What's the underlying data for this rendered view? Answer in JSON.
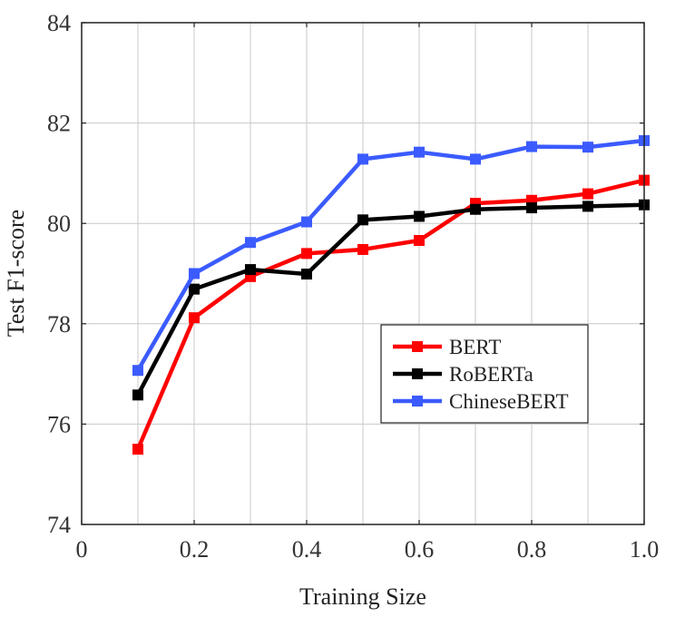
{
  "chart_data": {
    "type": "line",
    "title": "",
    "xlabel": "Training Size",
    "ylabel": "Test F1-score",
    "xlim": [
      0,
      1.0
    ],
    "ylim": [
      74,
      84
    ],
    "x_ticks": [
      "0",
      "0.2",
      "0.4",
      "0.6",
      "0.8",
      "1.0"
    ],
    "y_ticks": [
      "74",
      "76",
      "78",
      "80",
      "82",
      "84"
    ],
    "grid": true,
    "legend_position": "lower-right",
    "x": [
      0.1,
      0.2,
      0.3,
      0.4,
      0.5,
      0.6,
      0.7,
      0.8,
      0.9,
      1.0
    ],
    "series": [
      {
        "name": "BERT",
        "color": "#ff0000",
        "marker": "square",
        "values": [
          75.5,
          78.12,
          78.94,
          79.4,
          79.48,
          79.66,
          80.4,
          80.46,
          80.59,
          80.86
        ]
      },
      {
        "name": "RoBERTa",
        "color": "#000000",
        "marker": "square",
        "values": [
          76.58,
          78.69,
          79.08,
          78.99,
          80.07,
          80.14,
          80.28,
          80.31,
          80.34,
          80.37
        ]
      },
      {
        "name": "ChineseBERT",
        "color": "#3b5bff",
        "marker": "square",
        "values": [
          77.07,
          79.0,
          79.62,
          80.03,
          81.28,
          81.42,
          81.28,
          81.53,
          81.52,
          81.65
        ]
      }
    ]
  }
}
